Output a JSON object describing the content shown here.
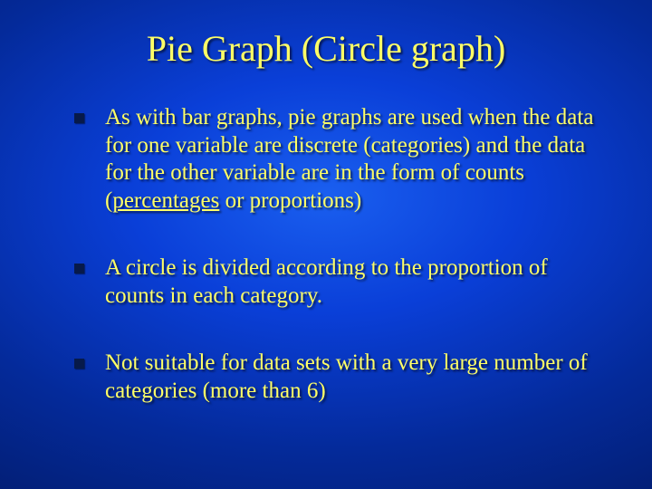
{
  "slide": {
    "title": "Pie Graph (Circle graph)",
    "background_gradient_inner": "#1a5ff0",
    "background_gradient_outer": "#021b6a",
    "text_color": "#ffff66",
    "bullet_color": "#071a4a",
    "title_fontsize": 40,
    "body_fontsize": 25,
    "font_family": "Times New Roman",
    "bullets": [
      {
        "pre": "As with bar graphs, pie graphs are used when the data for one variable are discrete (categories) and the data for the other variable are in the form of counts (",
        "underlined": "percentages",
        "post": " or proportions)"
      },
      {
        "pre": "A circle is divided according to the proportion of counts in each category.",
        "underlined": "",
        "post": ""
      },
      {
        "pre": "Not suitable for data sets with a very large number of categories (more than 6)",
        "underlined": "",
        "post": ""
      }
    ]
  }
}
